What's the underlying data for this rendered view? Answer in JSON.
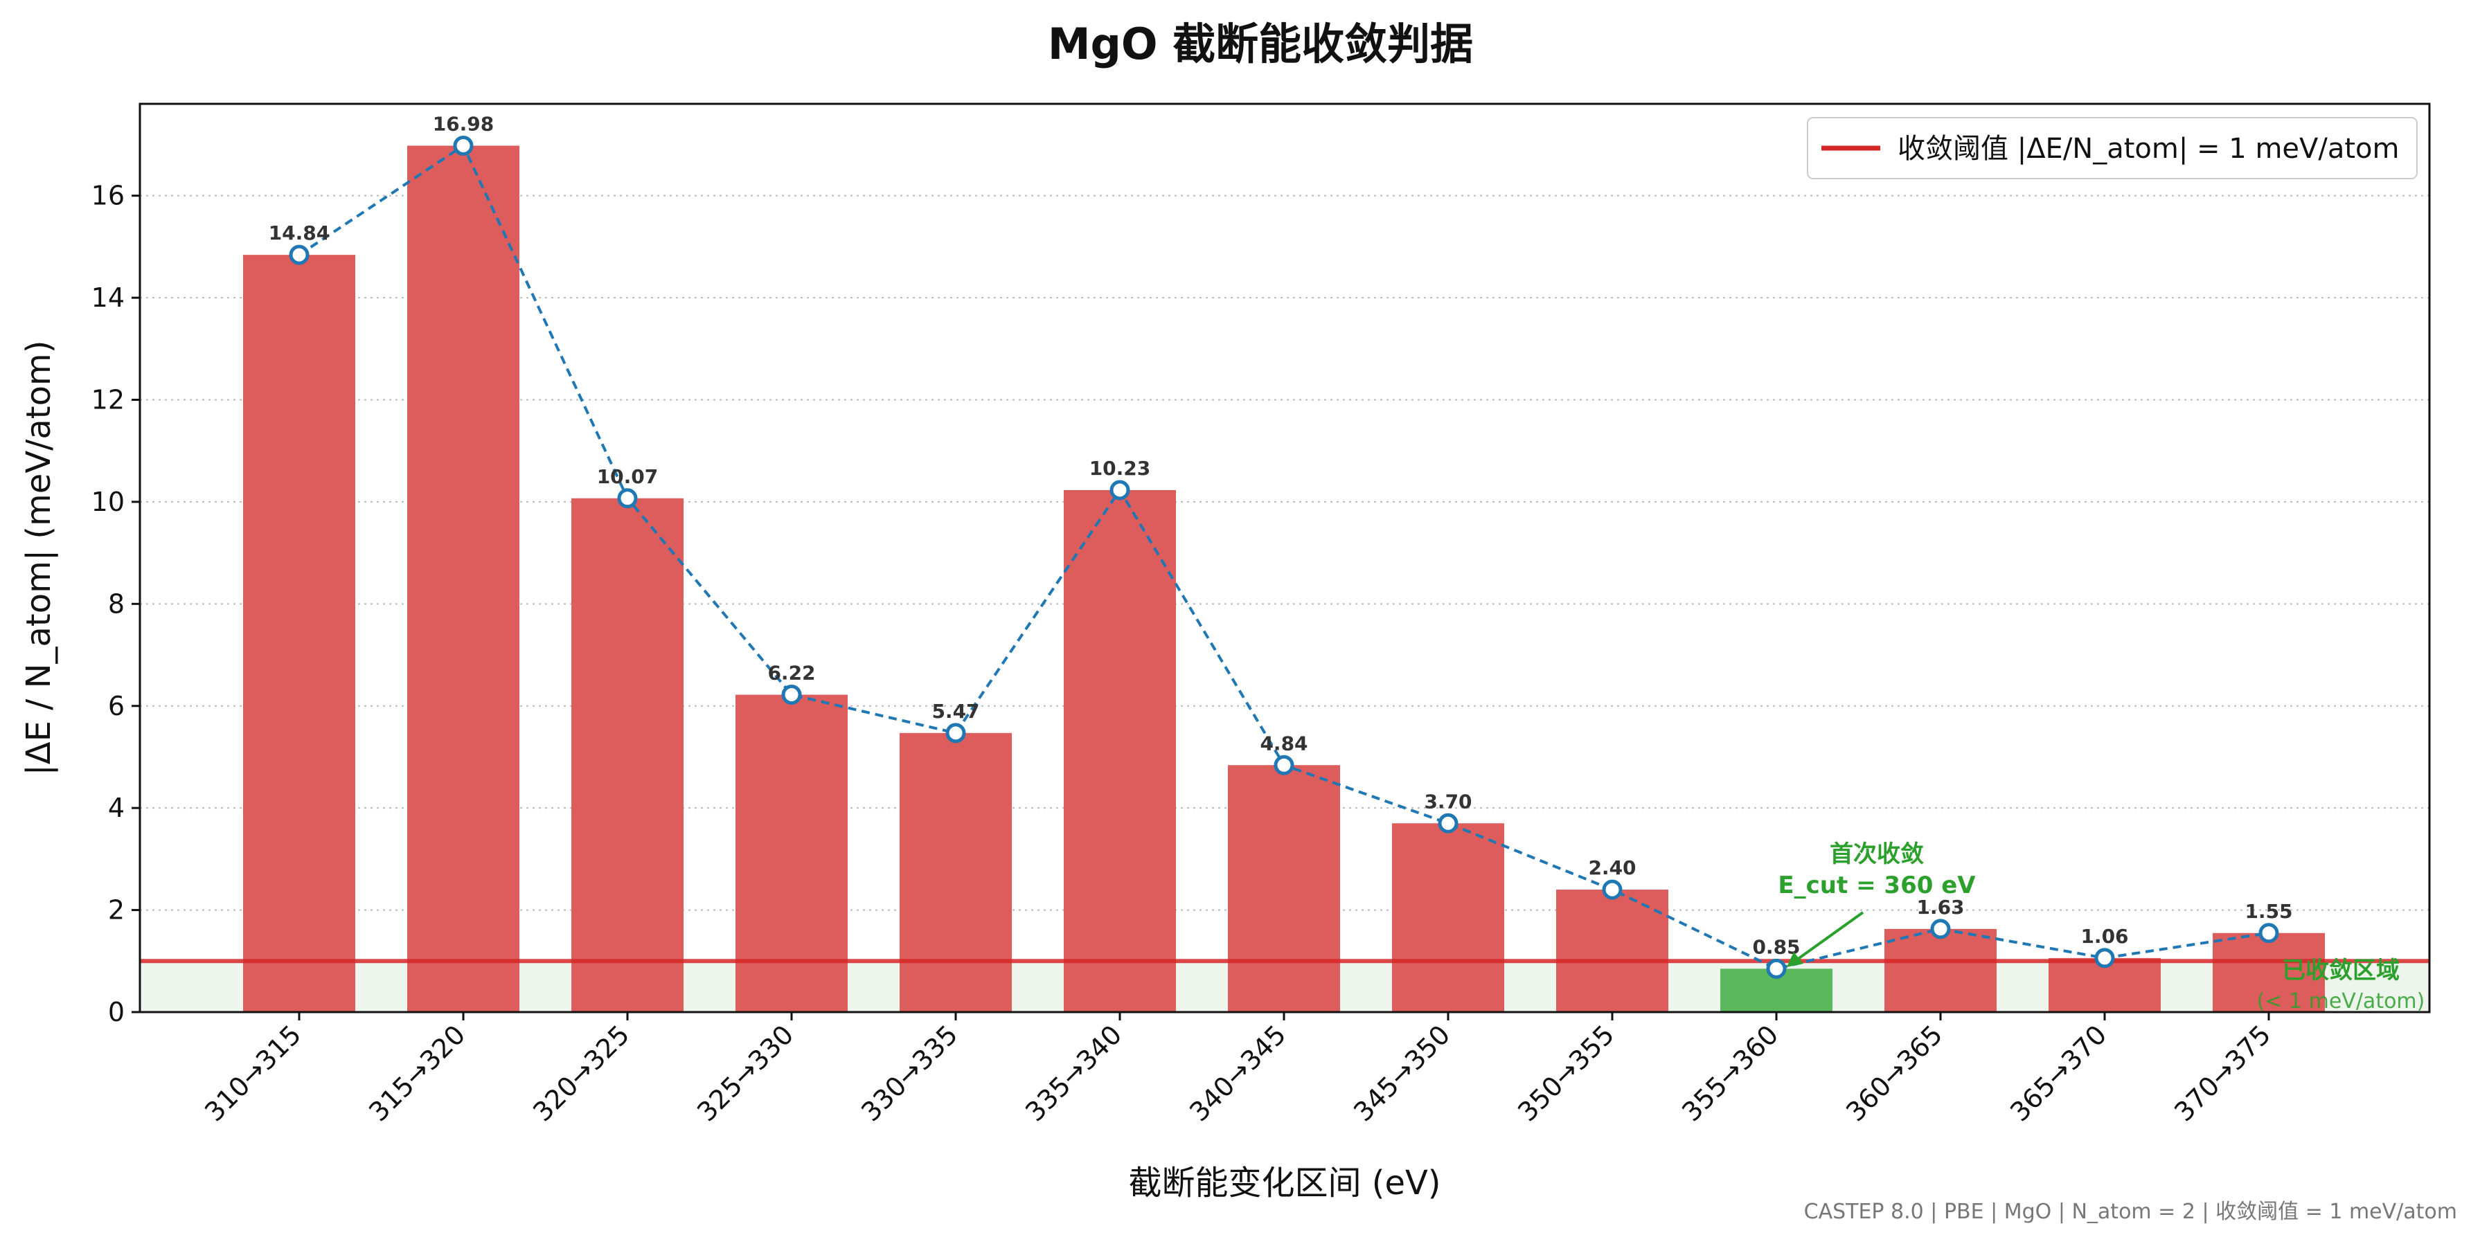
{
  "chart_data": {
    "type": "bar",
    "title": "MgO 截断能收敛判据",
    "xlabel": "截断能变化区间 (eV)",
    "ylabel": "|ΔE / N_atom| (meV/atom)",
    "categories": [
      "310→315",
      "315→320",
      "320→325",
      "325→330",
      "330→335",
      "335→340",
      "340→345",
      "345→350",
      "350→355",
      "355→360",
      "360→365",
      "365→370",
      "370→375"
    ],
    "values": [
      14.84,
      16.98,
      10.07,
      6.22,
      5.47,
      10.23,
      4.84,
      3.7,
      2.4,
      0.85,
      1.63,
      1.06,
      1.55
    ],
    "value_labels": [
      "14.84",
      "16.98",
      "10.07",
      "6.22",
      "5.47",
      "10.23",
      "4.84",
      "3.70",
      "2.40",
      "0.85",
      "1.63",
      "1.06",
      "1.55"
    ],
    "converged_index": 9,
    "threshold": 1,
    "ylim": [
      0,
      17.8
    ],
    "yticks": [
      0,
      2,
      4,
      6,
      8,
      10,
      12,
      14,
      16
    ],
    "grid": "y-dotted",
    "legend_position": "top-right",
    "legend": "收敛阈值 |ΔE/N_atom| = 1 meV/atom",
    "line_overlay": "dashed line with markers through bar tops",
    "annotations": {
      "first_converged_line1": "首次收敛",
      "first_converged_line2": "E_cut = 360 eV",
      "converged_region_line1": "已收敛区域",
      "converged_region_line2": "(< 1 meV/atom)"
    },
    "colors": {
      "bar": "#dd5c5c",
      "bar_converged": "#5cb85c",
      "threshold": "#d62728",
      "line": "#1f77b4",
      "annotation": "#2ca02c",
      "converged_band": "#eef5ec"
    }
  },
  "footer": "CASTEP 8.0 | PBE | MgO | N_atom = 2 | 收敛阈值 = 1 meV/atom"
}
